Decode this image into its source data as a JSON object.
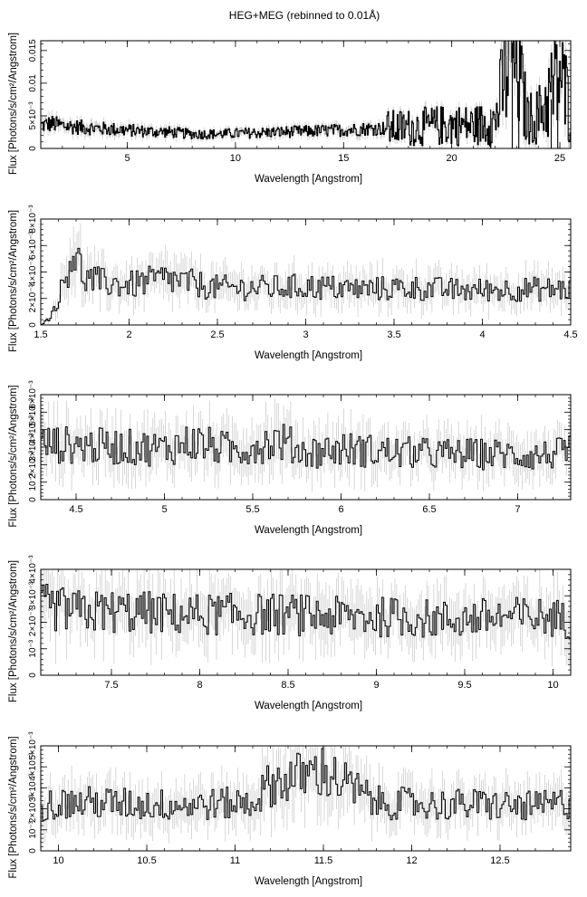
{
  "title": "HEG+MEG (rebinned to 0.01Å)",
  "chart_data": [
    {
      "type": "line",
      "title": "HEG+MEG (rebinned to 0.01Å)",
      "xlabel": "Wavelength [Angstrom]",
      "ylabel": "Flux [Photons/s/cm²/Angstrom]",
      "xlim": [
        1.0,
        25.5
      ],
      "ylim": [
        0,
        0.0165
      ],
      "xticks": [
        5,
        10,
        15,
        20,
        25
      ],
      "xtick_labels": [
        "5",
        "10",
        "15",
        "20",
        "25"
      ],
      "yticks": [
        0,
        0.005,
        0.01,
        0.015
      ],
      "ytick_labels": [
        "0",
        "5×10⁻³",
        "0.01",
        "0.015"
      ],
      "series": [
        {
          "x": [
            1.0,
            1.5,
            2.0,
            3.0,
            4.0,
            5.0,
            6.0,
            7.0,
            8.0,
            9.0,
            10.0,
            11.0,
            12.0,
            13.0,
            14.0,
            15.0,
            16.0,
            17.0,
            18.0,
            19.0,
            20.0,
            21.0,
            22.0,
            22.8,
            23.5,
            24.0,
            25.0,
            25.5
          ],
          "y": [
            0.0035,
            0.0038,
            0.0035,
            0.0032,
            0.003,
            0.0028,
            0.0026,
            0.0025,
            0.0022,
            0.0022,
            0.0023,
            0.0024,
            0.0025,
            0.0026,
            0.0027,
            0.0028,
            0.003,
            0.0031,
            0.0032,
            0.0034,
            0.0036,
            0.0035,
            0.004,
            0.016,
            0.0045,
            0.005,
            0.011,
            0.006
          ]
        }
      ]
    },
    {
      "type": "line",
      "xlabel": "Wavelength [Angstrom]",
      "ylabel": "Flux [Photons/s/cm²/Angstrom]",
      "xlim": [
        1.5,
        4.5
      ],
      "ylim": [
        0,
        0.008
      ],
      "xticks": [
        1.5,
        2,
        2.5,
        3,
        3.5,
        4,
        4.5
      ],
      "xtick_labels": [
        "1.5",
        "2",
        "2.5",
        "3",
        "3.5",
        "4",
        "4.5"
      ],
      "yticks": [
        0,
        0.002,
        0.004,
        0.006,
        0.008
      ],
      "ytick_labels": [
        "0",
        "2×10⁻³",
        "4×10⁻³",
        "6×10⁻³",
        "8×10⁻³"
      ],
      "series": [
        {
          "x": [
            1.5,
            1.55,
            1.6,
            1.65,
            1.68,
            1.75,
            1.85,
            2.0,
            2.2,
            2.5,
            2.8,
            3.0,
            3.3,
            3.6,
            3.9,
            4.2,
            4.5
          ],
          "y": [
            0.0,
            0.0005,
            0.002,
            0.004,
            0.0058,
            0.0035,
            0.0032,
            0.003,
            0.0035,
            0.0028,
            0.0028,
            0.0029,
            0.0027,
            0.0028,
            0.0026,
            0.0027,
            0.0027
          ]
        }
      ]
    },
    {
      "type": "line",
      "xlabel": "Wavelength [Angstrom]",
      "ylabel": "Flux [Photons/s/cm²/Angstrom]",
      "xlim": [
        4.3,
        7.3
      ],
      "ylim": [
        0,
        0.006
      ],
      "xticks": [
        4.5,
        5,
        5.5,
        6,
        6.5,
        7
      ],
      "xtick_labels": [
        "4.5",
        "5",
        "5.5",
        "6",
        "6.5",
        "7"
      ],
      "yticks": [
        0,
        0.001,
        0.002,
        0.003,
        0.004,
        0.005,
        0.006
      ],
      "ytick_labels": [
        "0",
        "10⁻³",
        "2×10⁻³",
        "3×10⁻³",
        "4×10⁻³",
        "5×10⁻³",
        "6×10⁻³"
      ],
      "series": [
        {
          "x": [
            4.3,
            4.5,
            4.8,
            5.0,
            5.15,
            5.4,
            5.65,
            5.8,
            6.0,
            6.3,
            6.6,
            6.9,
            7.1,
            7.3
          ],
          "y": [
            0.0032,
            0.0031,
            0.003,
            0.0029,
            0.0033,
            0.0028,
            0.0034,
            0.0027,
            0.0029,
            0.0027,
            0.0026,
            0.0026,
            0.0025,
            0.0027
          ]
        }
      ]
    },
    {
      "type": "line",
      "xlabel": "Wavelength [Angstrom]",
      "ylabel": "Flux [Photons/s/cm²/Angstrom]",
      "xlim": [
        7.1,
        10.1
      ],
      "ylim": [
        0,
        0.004
      ],
      "xticks": [
        7.5,
        8,
        8.5,
        9,
        9.5,
        10
      ],
      "xtick_labels": [
        "7.5",
        "8",
        "8.5",
        "9",
        "9.5",
        "10"
      ],
      "yticks": [
        0,
        0.001,
        0.002,
        0.003,
        0.004
      ],
      "ytick_labels": [
        "0",
        "10⁻³",
        "2×10⁻³",
        "3×10⁻³",
        "4×10⁻³"
      ],
      "series": [
        {
          "x": [
            7.1,
            7.3,
            7.6,
            7.9,
            8.2,
            8.5,
            8.8,
            9.1,
            9.4,
            9.7,
            10.0,
            10.1
          ],
          "y": [
            0.0026,
            0.0024,
            0.0024,
            0.0023,
            0.0023,
            0.0023,
            0.0022,
            0.0022,
            0.0021,
            0.0022,
            0.0022,
            0.002
          ]
        }
      ]
    },
    {
      "type": "line",
      "xlabel": "Wavelength [Angstrom]",
      "ylabel": "Flux [Photons/s/cm²/Angstrom]",
      "xlim": [
        9.9,
        12.9
      ],
      "ylim": [
        0,
        0.005
      ],
      "xticks": [
        10,
        10.5,
        11,
        11.5,
        12,
        12.5
      ],
      "xtick_labels": [
        "10",
        "10.5",
        "11",
        "11.5",
        "12",
        "12.5"
      ],
      "yticks": [
        0,
        0.001,
        0.002,
        0.003,
        0.004,
        0.005
      ],
      "ytick_labels": [
        "0",
        "10⁻³",
        "2×10⁻³",
        "3×10⁻³",
        "4×10⁻³",
        "5×10⁻³"
      ],
      "series": [
        {
          "x": [
            9.9,
            10.2,
            10.5,
            10.8,
            11.1,
            11.2,
            11.5,
            11.8,
            12.1,
            12.4,
            12.7,
            12.9
          ],
          "y": [
            0.0022,
            0.0023,
            0.0022,
            0.0022,
            0.0023,
            0.0032,
            0.0038,
            0.0023,
            0.0022,
            0.0022,
            0.0021,
            0.0023
          ]
        }
      ]
    }
  ]
}
